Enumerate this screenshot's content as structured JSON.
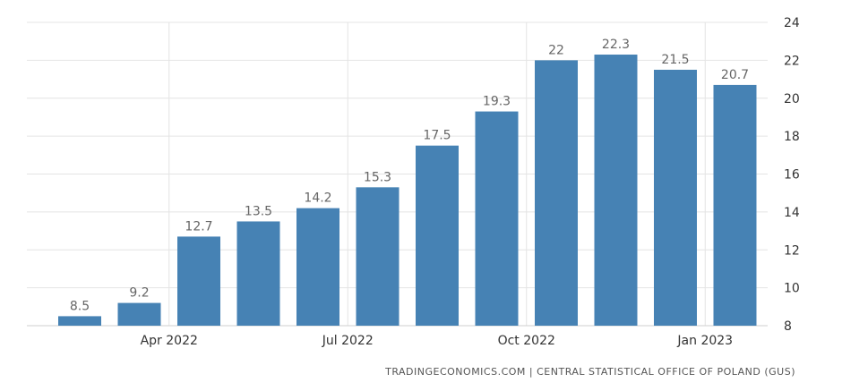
{
  "chart_data": {
    "type": "bar",
    "categories": [
      "2022-02",
      "2022-03",
      "2022-04",
      "2022-05",
      "2022-06",
      "2022-07",
      "2022-08",
      "2022-09",
      "2022-10",
      "2022-11",
      "2022-12",
      "2023-01"
    ],
    "values": [
      8.5,
      9.2,
      12.7,
      13.5,
      14.2,
      15.3,
      17.5,
      19.3,
      22,
      22.3,
      21.5,
      20.7
    ],
    "data_labels": [
      "8.5",
      "9.2",
      "12.7",
      "13.5",
      "14.2",
      "15.3",
      "17.5",
      "19.3",
      "22",
      "22.3",
      "21.5",
      "20.7"
    ],
    "x_tick_labels": [
      {
        "category": "2022-04",
        "label": "Apr 2022"
      },
      {
        "category": "2022-07",
        "label": "Jul 2022"
      },
      {
        "category": "2022-10",
        "label": "Oct 2022"
      },
      {
        "category": "2023-01",
        "label": "Jan 2023"
      }
    ],
    "y_ticks": [
      8,
      10,
      12,
      14,
      16,
      18,
      20,
      22,
      24
    ],
    "ylim": [
      8,
      24
    ],
    "y_axis_side": "right",
    "grid": true,
    "bar_color": "#4682b4"
  },
  "source_text": "TRADINGECONOMICS.COM | CENTRAL STATISTICAL OFFICE OF POLAND (GUS)"
}
